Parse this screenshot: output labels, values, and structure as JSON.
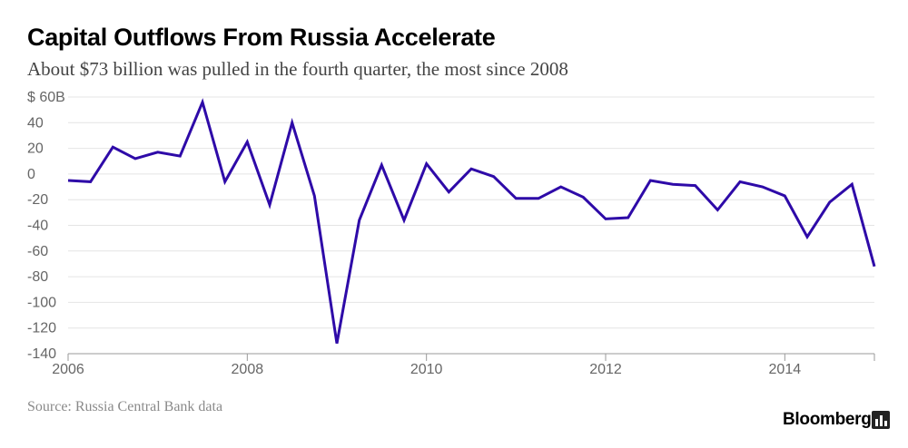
{
  "title": "Capital Outflows From Russia Accelerate",
  "subtitle": "About $73 billion was pulled in the fourth quarter, the most since 2008",
  "source": "Source: Russia Central Bank data",
  "brand": "Bloomberg",
  "colors": {
    "line": "#2e0aa8",
    "grid": "#e4e4e4",
    "axis": "#999999",
    "text": "#666666"
  },
  "chart_data": {
    "type": "line",
    "title": "Capital Outflows From Russia Accelerate",
    "xlabel": "",
    "ylabel": "",
    "xlim": [
      2006.0,
      2015.0
    ],
    "ylim": [
      -140,
      60
    ],
    "y_ticks": [
      {
        "value": 60,
        "label": "$ 60B"
      },
      {
        "value": 40,
        "label": "40"
      },
      {
        "value": 20,
        "label": "20"
      },
      {
        "value": 0,
        "label": "0"
      },
      {
        "value": -20,
        "label": "-20"
      },
      {
        "value": -40,
        "label": "-40"
      },
      {
        "value": -60,
        "label": "-60"
      },
      {
        "value": -80,
        "label": "-80"
      },
      {
        "value": -100,
        "label": "-100"
      },
      {
        "value": -120,
        "label": "-120"
      },
      {
        "value": -140,
        "label": "-140"
      }
    ],
    "x_ticks": [
      {
        "value": 2006,
        "label": "2006"
      },
      {
        "value": 2008,
        "label": "2008"
      },
      {
        "value": 2010,
        "label": "2010"
      },
      {
        "value": 2012,
        "label": "2012"
      },
      {
        "value": 2014,
        "label": "2014"
      }
    ],
    "grid": true,
    "series": [
      {
        "points": [
          [
            2006.0,
            -5
          ],
          [
            2006.25,
            -6
          ],
          [
            2006.5,
            21
          ],
          [
            2006.75,
            12
          ],
          [
            2007.0,
            17
          ],
          [
            2007.25,
            14
          ],
          [
            2007.5,
            56
          ],
          [
            2007.75,
            -6
          ],
          [
            2008.0,
            25
          ],
          [
            2008.25,
            -24
          ],
          [
            2008.5,
            40
          ],
          [
            2008.75,
            -17
          ],
          [
            2009.0,
            -132
          ],
          [
            2009.25,
            -36
          ],
          [
            2009.5,
            7
          ],
          [
            2009.75,
            -36
          ],
          [
            2010.0,
            8
          ],
          [
            2010.25,
            -14
          ],
          [
            2010.5,
            4
          ],
          [
            2010.75,
            -2
          ],
          [
            2011.0,
            -19
          ],
          [
            2011.25,
            -19
          ],
          [
            2011.5,
            -10
          ],
          [
            2011.75,
            -18
          ],
          [
            2012.0,
            -35
          ],
          [
            2012.25,
            -34
          ],
          [
            2012.5,
            -5
          ],
          [
            2012.75,
            -8
          ],
          [
            2013.0,
            -9
          ],
          [
            2013.25,
            -28
          ],
          [
            2013.5,
            -6
          ],
          [
            2013.75,
            -10
          ],
          [
            2014.0,
            -17
          ],
          [
            2014.25,
            -49
          ],
          [
            2014.5,
            -22
          ],
          [
            2014.75,
            -8
          ],
          [
            2015.0,
            -72
          ]
        ]
      }
    ]
  }
}
